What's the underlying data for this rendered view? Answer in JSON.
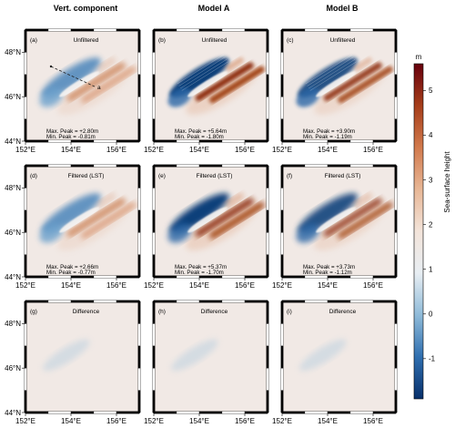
{
  "figure": {
    "column_titles": [
      "Vert. component",
      "Model A",
      "Model B"
    ],
    "x_ticks": [
      "152°E",
      "154°E",
      "156°E"
    ],
    "y_ticks": [
      "44°N",
      "46°N",
      "48°N"
    ],
    "profile_endpoint_label": "a"
  },
  "colorbar": {
    "unit": "m",
    "label": "Sea-surface height",
    "range": [
      -1.9,
      5.6
    ],
    "ticks": [
      -1,
      0,
      1,
      2,
      3,
      4,
      5
    ],
    "colormap": [
      "#08306b",
      "#2f6fb0",
      "#8fbbd9",
      "#e8eef3",
      "#f3e4da",
      "#e8b796",
      "#d27a4d",
      "#a63e1a",
      "#67000d"
    ]
  },
  "panels": [
    {
      "id": "a",
      "letter": "(a)",
      "title": "Unfiltered",
      "max_peak": "Max. Peak = +2.80m",
      "min_peak": "Min. Peak = -0.81m"
    },
    {
      "id": "b",
      "letter": "(b)",
      "title": "Unfiltered",
      "max_peak": "Max. Peak = +5.64m",
      "min_peak": "Min. Peak = -1.80m"
    },
    {
      "id": "c",
      "letter": "(c)",
      "title": "Unfiltered",
      "max_peak": "Max. Peak = +3.90m",
      "min_peak": "Min. Peak = -1.19m"
    },
    {
      "id": "d",
      "letter": "(d)",
      "title": "Filtered (LST)",
      "max_peak": "Max. Peak = +2.66m",
      "min_peak": "Min. Peak = -0.77m"
    },
    {
      "id": "e",
      "letter": "(e)",
      "title": "Filtered (LST)",
      "max_peak": "Max. Peak = +5.37m",
      "min_peak": "Min. Peak = -1.70m"
    },
    {
      "id": "f",
      "letter": "(f)",
      "title": "Filtered (LST)",
      "max_peak": "Max. Peak = +3.73m",
      "min_peak": "Min. Peak = -1.12m"
    },
    {
      "id": "g",
      "letter": "(g)",
      "title": "Difference",
      "max_peak": "",
      "min_peak": ""
    },
    {
      "id": "h",
      "letter": "(h)",
      "title": "Difference",
      "max_peak": "",
      "min_peak": ""
    },
    {
      "id": "i",
      "letter": "(i)",
      "title": "Difference",
      "max_peak": "",
      "min_peak": ""
    }
  ],
  "chart_data": {
    "type": "heatmap",
    "title": "",
    "column_titles": [
      "Vert. component",
      "Model A",
      "Model B"
    ],
    "row_labels": [
      "Unfiltered",
      "Filtered (LST)",
      "Difference"
    ],
    "x_axis": {
      "range_deg_E": [
        152,
        157
      ],
      "ticks": [
        152,
        154,
        156
      ],
      "tick_labels": [
        "152°E",
        "154°E",
        "156°E"
      ]
    },
    "y_axis": {
      "range_deg_N": [
        44,
        49
      ],
      "ticks": [
        44,
        46,
        48
      ],
      "tick_labels": [
        "44°N",
        "46°N",
        "48°N"
      ]
    },
    "colorbar": {
      "label": "Sea-surface height",
      "unit": "m",
      "ticks": [
        -1,
        0,
        1,
        2,
        3,
        4,
        5
      ]
    },
    "peaks": [
      {
        "panel": "a",
        "max": 2.8,
        "min": -0.81
      },
      {
        "panel": "b",
        "max": 5.64,
        "min": -1.8
      },
      {
        "panel": "c",
        "max": 3.9,
        "min": -1.19
      },
      {
        "panel": "d",
        "max": 2.66,
        "min": -0.77
      },
      {
        "panel": "e",
        "max": 5.37,
        "min": -1.7
      },
      {
        "panel": "f",
        "max": 3.73,
        "min": -1.12
      }
    ]
  }
}
